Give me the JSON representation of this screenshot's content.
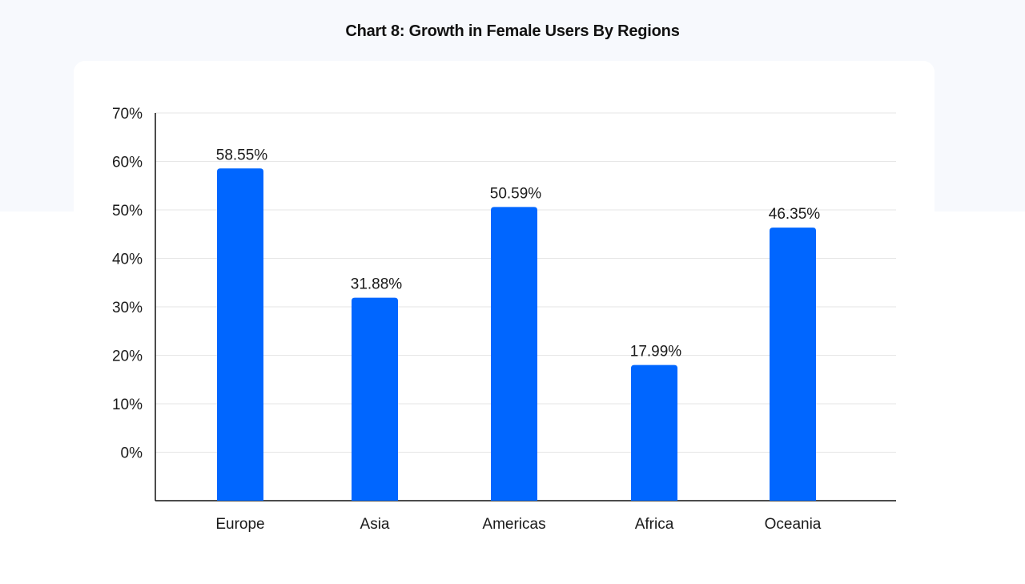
{
  "chart_data": {
    "type": "bar",
    "title": "Chart 8: Growth in Female Users By Regions",
    "xlabel": "",
    "ylabel": "",
    "categories": [
      "Europe",
      "Asia",
      "Americas",
      "Africa",
      "Oceania"
    ],
    "values": [
      58.55,
      31.88,
      50.59,
      17.99,
      46.35
    ],
    "data_labels": [
      "58.55%",
      "31.88%",
      "50.59%",
      "17.99%",
      "46.35%"
    ],
    "y_ticks": [
      "0%",
      "10%",
      "20%",
      "30%",
      "40%",
      "50%",
      "60%",
      "70%"
    ],
    "y_tick_values": [
      0,
      10,
      20,
      30,
      40,
      50,
      60,
      70
    ],
    "ylim": [
      -10,
      70
    ],
    "grid": true,
    "legend": "none",
    "bar_color": "#0066ff",
    "background_band_color": "#f7f9fd"
  }
}
